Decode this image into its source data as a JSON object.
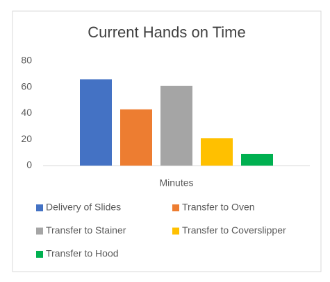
{
  "chart_data": {
    "type": "bar",
    "title": "Current Hands on Time",
    "categories": [
      "Minutes"
    ],
    "series": [
      {
        "name": "Delivery of Slides",
        "color": "#4472c4",
        "values": [
          66
        ]
      },
      {
        "name": "Transfer to Oven",
        "color": "#ed7d31",
        "values": [
          43
        ]
      },
      {
        "name": "Transfer to Stainer",
        "color": "#a5a5a5",
        "values": [
          61
        ]
      },
      {
        "name": "Transfer to Coverslipper",
        "color": "#ffc000",
        "values": [
          21
        ]
      },
      {
        "name": "Transfer to Hood",
        "color": "#00b050",
        "values": [
          9
        ]
      }
    ],
    "ylim": [
      0,
      80
    ],
    "yticks": [
      0,
      20,
      40,
      60,
      80
    ],
    "grid": false,
    "legend": "bottom"
  }
}
